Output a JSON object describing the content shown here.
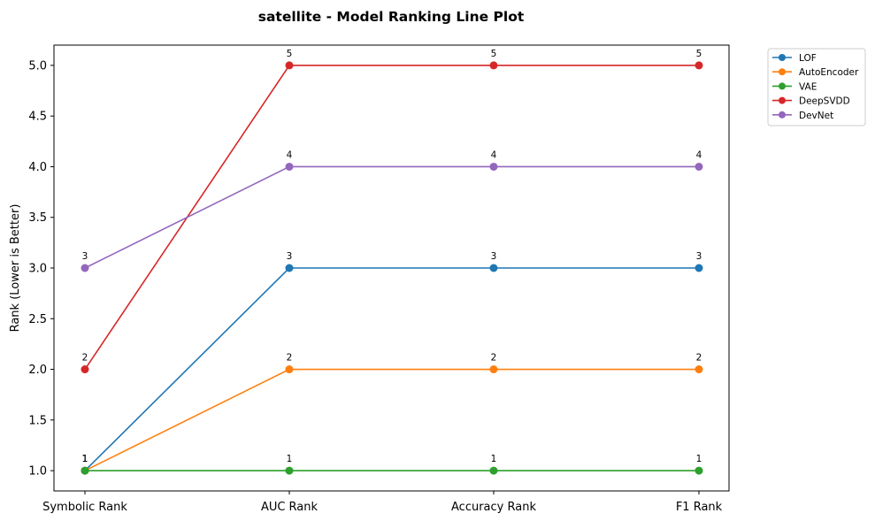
{
  "chart_data": {
    "type": "line",
    "title": "satellite - Model Ranking Line Plot",
    "xlabel": "",
    "ylabel": "Rank (Lower is Better)",
    "categories": [
      "Symbolic Rank",
      "AUC Rank",
      "Accuracy Rank",
      "F1 Rank"
    ],
    "ylim": [
      0.8,
      5.2
    ],
    "yticks": [
      1.0,
      1.5,
      2.0,
      2.5,
      3.0,
      3.5,
      4.0,
      4.5,
      5.0
    ],
    "ytick_labels": [
      "1.0",
      "1.5",
      "2.0",
      "2.5",
      "3.0",
      "3.5",
      "4.0",
      "4.5",
      "5.0"
    ],
    "grid": false,
    "legend_position": "outside-top-right",
    "series": [
      {
        "name": "LOF",
        "color": "#1f77b4",
        "values": [
          1,
          3,
          3,
          3
        ],
        "labels": [
          "1",
          "3",
          "3",
          "3"
        ]
      },
      {
        "name": "AutoEncoder",
        "color": "#ff7f0e",
        "values": [
          1,
          2,
          2,
          2
        ],
        "labels": [
          "1",
          "2",
          "2",
          "2"
        ]
      },
      {
        "name": "VAE",
        "color": "#2ca02c",
        "values": [
          1,
          1,
          1,
          1
        ],
        "labels": [
          "1",
          "1",
          "1",
          "1"
        ]
      },
      {
        "name": "DeepSVDD",
        "color": "#d62728",
        "values": [
          2,
          5,
          5,
          5
        ],
        "labels": [
          "2",
          "5",
          "5",
          "5"
        ]
      },
      {
        "name": "DevNet",
        "color": "#9467bd",
        "values": [
          3,
          4,
          4,
          4
        ],
        "labels": [
          "3",
          "4",
          "4",
          "4"
        ]
      }
    ]
  }
}
